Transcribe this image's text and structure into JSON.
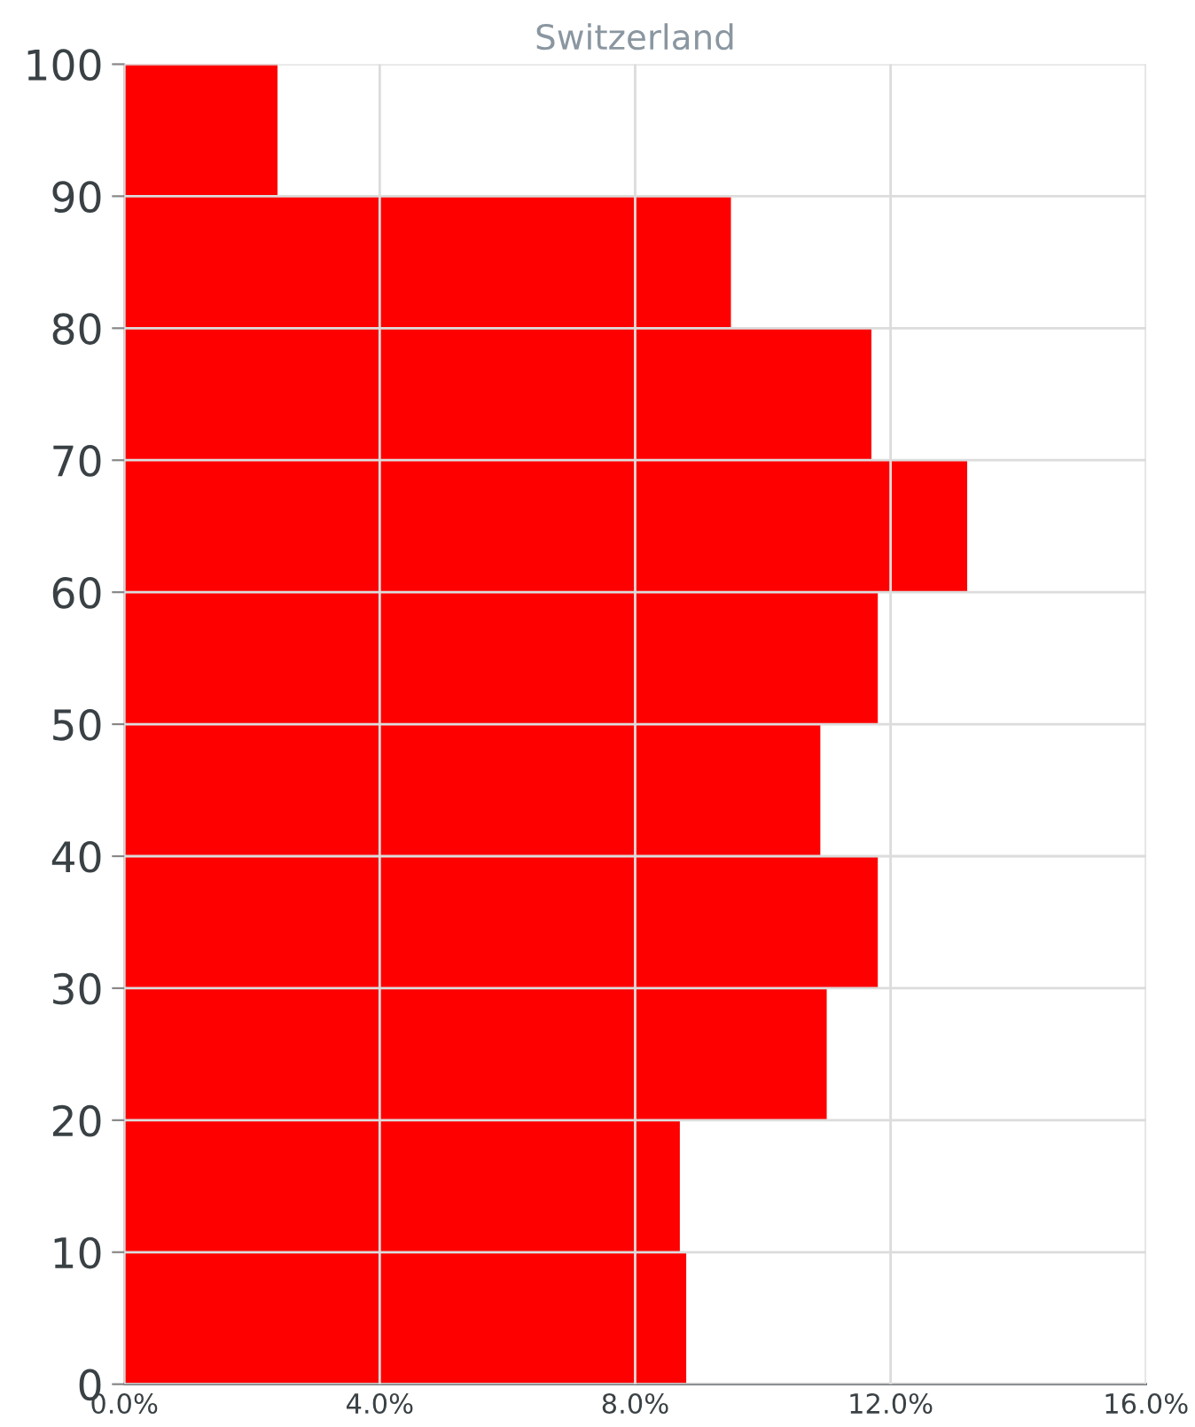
{
  "chart_data": {
    "type": "histogram",
    "orientation": "horizontal",
    "title": "Switzerland",
    "bins": [
      0,
      10,
      20,
      30,
      40,
      50,
      60,
      70,
      80,
      90,
      100
    ],
    "values": [
      8.8,
      8.7,
      11.0,
      11.8,
      10.9,
      11.8,
      13.2,
      11.7,
      9.5,
      2.4
    ],
    "color": "#ff0000",
    "xlim": [
      0,
      16
    ],
    "xticks": [
      {
        "value": 0,
        "label": "0.0%"
      },
      {
        "value": 4,
        "label": "4.0%"
      },
      {
        "value": 8,
        "label": "8.0%"
      },
      {
        "value": 12,
        "label": "12.0%"
      },
      {
        "value": 16,
        "label": "16.0%"
      }
    ],
    "ylim": [
      0,
      100
    ],
    "yticks": [
      0,
      10,
      20,
      30,
      40,
      50,
      60,
      70,
      80,
      90,
      100
    ],
    "grid": true
  }
}
